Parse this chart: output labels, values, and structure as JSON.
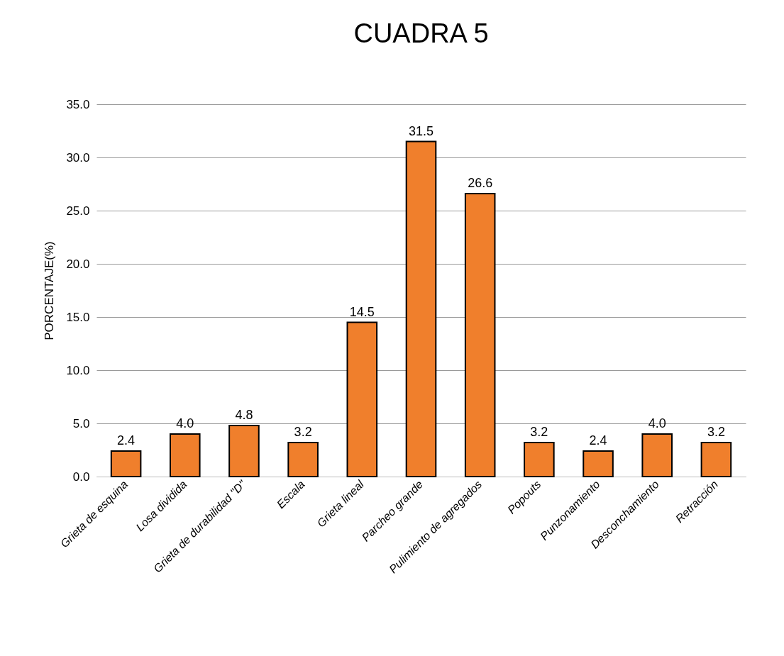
{
  "chart_data": {
    "type": "bar",
    "title": "CUADRA 5",
    "ylabel": "PORCENTAJE(%)",
    "categories": [
      "Grieta de esquina",
      "Losa dividida",
      "Grieta de durabilidad \"D\"",
      "Escala",
      "Grieta lineal",
      "Parcheo grande",
      "Pulimiento de agregados",
      "Popouts",
      "Punzonamiento",
      "Desconchamiento",
      "Retracción"
    ],
    "values": [
      2.4,
      4.0,
      4.8,
      3.2,
      14.5,
      31.5,
      26.6,
      3.2,
      2.4,
      4.0,
      3.2
    ],
    "value_labels": [
      "2.4",
      "4.0",
      "4.8",
      "3.2",
      "14.5",
      "31.5",
      "26.6",
      "3.2",
      "2.4",
      "4.0",
      "3.2"
    ],
    "color": "#f07f2c",
    "ylim": [
      0,
      35
    ],
    "yticks": [
      {
        "value": 0,
        "label": "0.0"
      },
      {
        "value": 5,
        "label": "5.0"
      },
      {
        "value": 10,
        "label": "10.0"
      },
      {
        "value": 15,
        "label": "15.0"
      },
      {
        "value": 20,
        "label": "20.0"
      },
      {
        "value": 25,
        "label": "25.0"
      },
      {
        "value": 30,
        "label": "30.0"
      },
      {
        "value": 35,
        "label": "35.0"
      }
    ],
    "grid": "y"
  }
}
